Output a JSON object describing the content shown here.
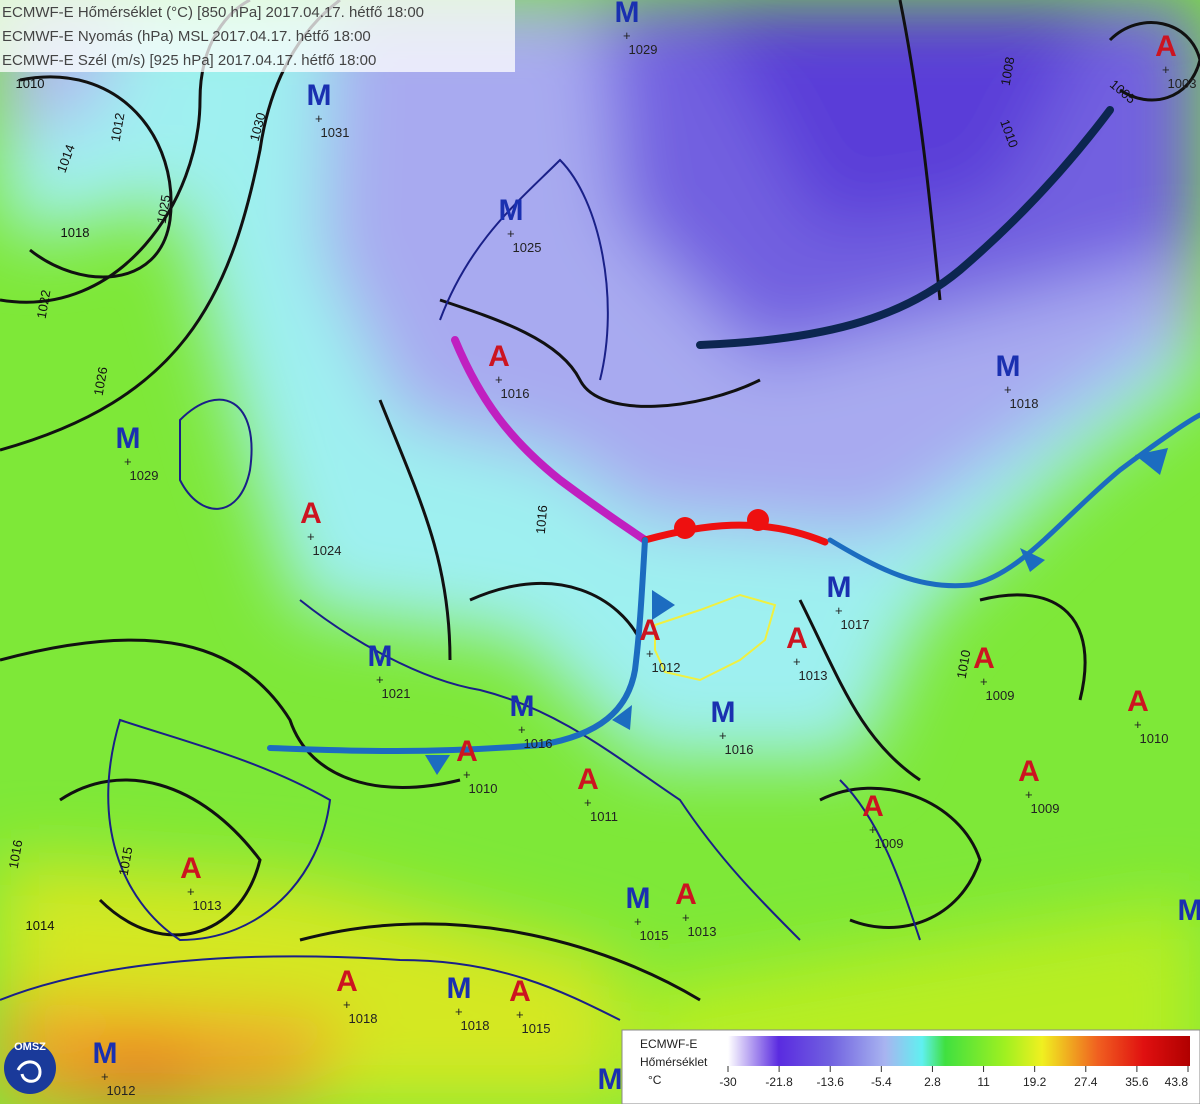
{
  "header": {
    "lines": [
      "ECMWF-E Hőmérséklet (°C) [850 hPa] 2017.04.17. hétfő 18:00",
      "ECMWF-E Nyomás (hPa) MSL 2017.04.17. hétfő 18:00",
      "ECMWF-E Szél (m/s) [925 hPa] 2017.04.17. hétfő 18:00"
    ]
  },
  "centers": [
    {
      "letter": "M",
      "value": 1029
    },
    {
      "letter": "M",
      "value": 1031
    },
    {
      "letter": "M",
      "value": 1025
    },
    {
      "letter": "A",
      "value": 1016
    },
    {
      "letter": "M",
      "value": 1018
    },
    {
      "letter": "M",
      "value": 1029
    },
    {
      "letter": "A",
      "value": 1024
    },
    {
      "letter": "M",
      "value": 1017
    },
    {
      "letter": "A",
      "value": 1012
    },
    {
      "letter": "A",
      "value": 1013
    },
    {
      "letter": "A",
      "value": 1009
    },
    {
      "letter": "M",
      "value": 1021
    },
    {
      "letter": "M",
      "value": 1016
    },
    {
      "letter": "A",
      "value": 1010
    },
    {
      "letter": "M",
      "value": 1016
    },
    {
      "letter": "A",
      "value": 1010
    },
    {
      "letter": "A",
      "value": 1009
    },
    {
      "letter": "A",
      "value": 1011
    },
    {
      "letter": "A",
      "value": 1009
    },
    {
      "letter": "A",
      "value": 1013
    },
    {
      "letter": "M",
      "value": 1015
    },
    {
      "letter": "A",
      "value": 1013
    },
    {
      "letter": "A",
      "value": 1018
    },
    {
      "letter": "M",
      "value": 1018
    },
    {
      "letter": "A",
      "value": 1015
    },
    {
      "letter": "M",
      "value": 1012
    },
    {
      "letter": "A",
      "value": 1003
    },
    {
      "letter": "M"
    },
    {
      "letter": "M"
    }
  ],
  "isobar_labels": [
    1010,
    1030,
    1025,
    1022,
    1026,
    1018,
    1014,
    1012,
    1008,
    1005,
    1010,
    1016,
    1010,
    1015,
    1014,
    1016
  ],
  "logo": "OMSZ",
  "legend": {
    "title": "ECMWF-E",
    "label": "Hőmérséklet",
    "unit": "°C",
    "ticks": [
      -30,
      -21.8,
      -13.6,
      -5.4,
      2.8,
      11,
      19.2,
      27.4,
      35.6,
      43.8
    ]
  }
}
